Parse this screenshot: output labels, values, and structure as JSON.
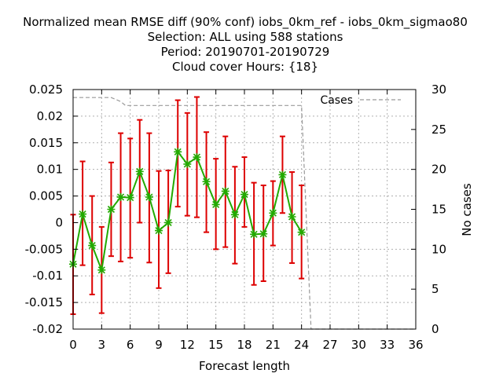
{
  "chart_data": {
    "type": "line",
    "title_lines": [
      "Normalized mean RMSE diff (90% conf) iobs_0km_ref - iobs_0km_sigmao80",
      "Selection: ALL using   588 stations",
      "Period: 20190701-20190729",
      "Cloud cover   Hours: {18}"
    ],
    "xlabel": "Forecast length",
    "ylabel": "",
    "y2label": "No cases",
    "xlim": [
      0,
      36
    ],
    "ylim": [
      -0.02,
      0.025
    ],
    "y2lim": [
      0,
      30
    ],
    "xticks": [
      "0",
      "3",
      "6",
      "9",
      "12",
      "15",
      "18",
      "21",
      "24",
      "27",
      "30",
      "33",
      "36"
    ],
    "yticks": [
      "-0.02",
      "-0.015",
      "-0.01",
      "-0.005",
      "0",
      "0.005",
      "0.01",
      "0.015",
      "0.02",
      "0.025"
    ],
    "y2ticks": [
      "0",
      "5",
      "10",
      "15",
      "20",
      "25",
      "30"
    ],
    "grid": true,
    "legend": {
      "position": "top-right",
      "entries": [
        "Cases"
      ]
    },
    "colors": {
      "diff": "#22aa00",
      "errorbar": "#dd0000",
      "cases": "#999999"
    },
    "series": [
      {
        "role": "normalized-rmse-diff",
        "axis": "left",
        "x": [
          0,
          1,
          2,
          3,
          4,
          5,
          6,
          7,
          8,
          9,
          10,
          11,
          12,
          13,
          14,
          15,
          16,
          17,
          18,
          19,
          20,
          21,
          22,
          23,
          24
        ],
        "values": [
          -0.0078,
          0.0016,
          -0.0043,
          -0.0089,
          0.0025,
          0.0048,
          0.0047,
          0.0096,
          0.0048,
          -0.0015,
          0.0,
          0.0133,
          0.011,
          0.0123,
          0.0077,
          0.0034,
          0.0059,
          0.0015,
          0.0053,
          -0.0022,
          -0.0021,
          0.0018,
          0.009,
          0.0011,
          -0.0018
        ],
        "err_low": [
          -0.0172,
          -0.008,
          -0.0135,
          -0.017,
          -0.0063,
          -0.0073,
          -0.0066,
          0.0,
          -0.0075,
          -0.0123,
          -0.0095,
          0.003,
          0.0013,
          0.001,
          -0.0018,
          -0.005,
          -0.0046,
          -0.0077,
          -0.0008,
          -0.0117,
          -0.011,
          -0.0043,
          0.0018,
          -0.0076,
          -0.0105
        ],
        "err_high": [
          0.0015,
          0.0115,
          0.005,
          -0.0008,
          0.0113,
          0.0168,
          0.0158,
          0.0193,
          0.0168,
          0.0097,
          0.0098,
          0.023,
          0.0206,
          0.0236,
          0.017,
          0.012,
          0.0162,
          0.0105,
          0.0123,
          0.0075,
          0.007,
          0.0078,
          0.0162,
          0.0095,
          0.007
        ]
      },
      {
        "name": "Cases",
        "axis": "right",
        "x": [
          0,
          4,
          5,
          5.5,
          6,
          24,
          25,
          36
        ],
        "values": [
          29,
          29,
          28.5,
          28,
          28,
          28,
          0,
          0
        ]
      }
    ]
  }
}
